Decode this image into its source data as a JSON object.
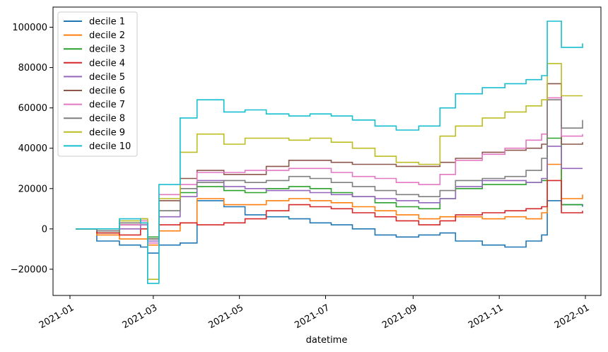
{
  "chart_data": {
    "type": "line",
    "title": "",
    "xlabel": "datetime",
    "ylabel": "",
    "xlim": [
      "2020-12-20",
      "2022-01-12"
    ],
    "ylim": [
      -33000,
      110000
    ],
    "x_ticks": [
      {
        "date": "2021-01-01",
        "label": "2021-01"
      },
      {
        "date": "2021-03-01",
        "label": "2021-03"
      },
      {
        "date": "2021-05-01",
        "label": "2021-05"
      },
      {
        "date": "2021-07-01",
        "label": "2021-07"
      },
      {
        "date": "2021-09-01",
        "label": "2021-09"
      },
      {
        "date": "2021-11-01",
        "label": "2021-11"
      },
      {
        "date": "2022-01-01",
        "label": "2022-01"
      }
    ],
    "y_ticks": [
      {
        "value": -20000,
        "label": "−20000"
      },
      {
        "value": 0,
        "label": "0"
      },
      {
        "value": 20000,
        "label": "20000"
      },
      {
        "value": 40000,
        "label": "40000"
      },
      {
        "value": 60000,
        "label": "60000"
      },
      {
        "value": 80000,
        "label": "80000"
      },
      {
        "value": 100000,
        "label": "100000"
      }
    ],
    "grid": false,
    "legend_position": "top-left",
    "x": [
      "2021-01-05",
      "2021-01-20",
      "2021-02-05",
      "2021-02-20",
      "2021-02-25",
      "2021-03-05",
      "2021-03-20",
      "2021-04-01",
      "2021-04-20",
      "2021-05-05",
      "2021-05-20",
      "2021-06-05",
      "2021-06-20",
      "2021-07-05",
      "2021-07-20",
      "2021-08-05",
      "2021-08-20",
      "2021-09-05",
      "2021-09-20",
      "2021-10-01",
      "2021-10-20",
      "2021-11-05",
      "2021-11-20",
      "2021-12-01",
      "2021-12-05",
      "2021-12-15",
      "2021-12-30"
    ],
    "series": [
      {
        "name": "decile 1",
        "color": "#1f77b4",
        "values": [
          0,
          -6000,
          -8000,
          -9000,
          -12000,
          -8000,
          -7000,
          14000,
          11000,
          7000,
          6000,
          5000,
          3000,
          2000,
          0,
          -3000,
          -4000,
          -3000,
          -2000,
          -6000,
          -8000,
          -9000,
          -6000,
          -3000,
          14000,
          12000,
          11000
        ]
      },
      {
        "name": "decile 2",
        "color": "#ff7f0e",
        "values": [
          0,
          -3000,
          -5000,
          -5000,
          -8000,
          -1000,
          3000,
          15000,
          12000,
          12000,
          14000,
          15000,
          14000,
          13000,
          11000,
          9000,
          7000,
          5000,
          6000,
          6000,
          5000,
          6000,
          5000,
          8000,
          32000,
          15000,
          17000
        ]
      },
      {
        "name": "decile 3",
        "color": "#2ca02c",
        "values": [
          0,
          -2000,
          3000,
          3000,
          -4000,
          9000,
          18000,
          21000,
          19000,
          18000,
          20000,
          21000,
          20000,
          18000,
          16000,
          13000,
          11000,
          10000,
          15000,
          20000,
          22000,
          22000,
          23000,
          24000,
          45000,
          12000,
          12000
        ]
      },
      {
        "name": "decile 4",
        "color": "#d62728",
        "values": [
          0,
          -2000,
          -3000,
          0,
          -5000,
          2000,
          3000,
          2000,
          3000,
          5000,
          9000,
          12000,
          11000,
          10000,
          8000,
          6000,
          4000,
          2000,
          4000,
          7000,
          8000,
          9000,
          10000,
          11000,
          24000,
          8000,
          9000
        ]
      },
      {
        "name": "decile 5",
        "color": "#9467bd",
        "values": [
          0,
          -1000,
          0,
          2000,
          -6000,
          6000,
          16000,
          24000,
          21000,
          20000,
          19000,
          19000,
          18000,
          17000,
          16000,
          15000,
          14000,
          13000,
          15000,
          21000,
          24000,
          24000,
          23000,
          25000,
          41000,
          30000,
          30000
        ]
      },
      {
        "name": "decile 6",
        "color": "#8c564b",
        "values": [
          0,
          -1000,
          2000,
          3000,
          -5000,
          14000,
          25000,
          29000,
          27000,
          27000,
          31000,
          34000,
          34000,
          33000,
          32000,
          32000,
          31000,
          31000,
          33000,
          35000,
          38000,
          39000,
          40000,
          42000,
          72000,
          42000,
          43000
        ]
      },
      {
        "name": "decile 7",
        "color": "#e377c2",
        "values": [
          0,
          -1000,
          2000,
          4000,
          -7000,
          17000,
          22000,
          28000,
          28000,
          29000,
          29000,
          30000,
          30000,
          28000,
          26000,
          25000,
          23000,
          22000,
          27000,
          34000,
          37000,
          40000,
          44000,
          47000,
          65000,
          46000,
          47000
        ]
      },
      {
        "name": "decile 8",
        "color": "#7f7f7f",
        "values": [
          0,
          -1000,
          3000,
          5000,
          -5000,
          9000,
          20000,
          23000,
          24000,
          23000,
          24000,
          26000,
          25000,
          23000,
          21000,
          19000,
          17000,
          16000,
          19000,
          24000,
          25000,
          26000,
          29000,
          35000,
          64000,
          50000,
          54000
        ]
      },
      {
        "name": "decile 9",
        "color": "#bcbd22",
        "values": [
          0,
          0,
          4000,
          5000,
          -25000,
          15000,
          38000,
          47000,
          42000,
          45000,
          45000,
          44000,
          45000,
          43000,
          40000,
          36000,
          33000,
          32000,
          46000,
          51000,
          55000,
          58000,
          61000,
          64000,
          82000,
          66000,
          66000
        ]
      },
      {
        "name": "decile 10",
        "color": "#17becf",
        "values": [
          0,
          0,
          5000,
          3000,
          -27000,
          22000,
          55000,
          64000,
          58000,
          59000,
          57000,
          56000,
          57000,
          56000,
          54000,
          51000,
          49000,
          51000,
          60000,
          67000,
          70000,
          72000,
          74000,
          76000,
          103000,
          90000,
          92000
        ]
      }
    ]
  }
}
